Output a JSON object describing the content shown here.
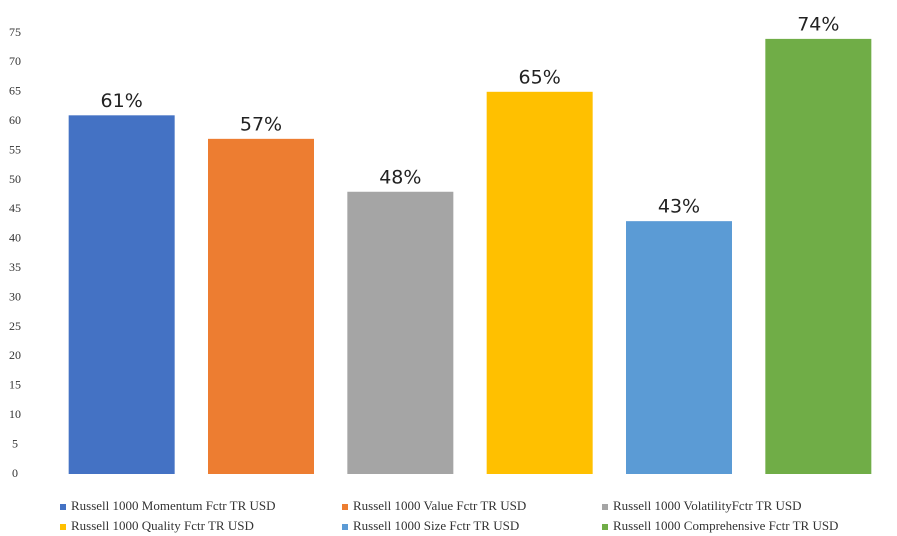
{
  "chart_data": {
    "type": "bar",
    "series": [
      {
        "name": "Russell 1000 Momentum Fctr TR USD",
        "color": "#4472c4",
        "values": [
          61
        ],
        "value_labels": [
          "61%"
        ]
      },
      {
        "name": "Russell 1000 Value Fctr TR USD",
        "color": "#ed7d31",
        "values": [
          57
        ],
        "value_labels": [
          "57%"
        ]
      },
      {
        "name": "Russell 1000 VolatilityFctr TR USD",
        "color": "#a5a5a5",
        "values": [
          48
        ],
        "value_labels": [
          "48%"
        ]
      },
      {
        "name": "Russell 1000 Quality Fctr TR USD",
        "color": "#ffc000",
        "values": [
          65
        ],
        "value_labels": [
          "65%"
        ]
      },
      {
        "name": "Russell 1000 Size Fctr TR USD",
        "color": "#5b9bd5",
        "values": [
          43
        ],
        "value_labels": [
          "43%"
        ]
      },
      {
        "name": "Russell 1000 Comprehensive Fctr TR USD",
        "color": "#70ad47",
        "values": [
          74
        ],
        "value_labels": [
          "74%"
        ]
      }
    ],
    "ylim": [
      0,
      75
    ],
    "yticks": [
      0,
      5,
      10,
      15,
      20,
      25,
      30,
      35,
      40,
      45,
      50,
      55,
      60,
      65,
      70,
      75
    ],
    "grid": false
  }
}
